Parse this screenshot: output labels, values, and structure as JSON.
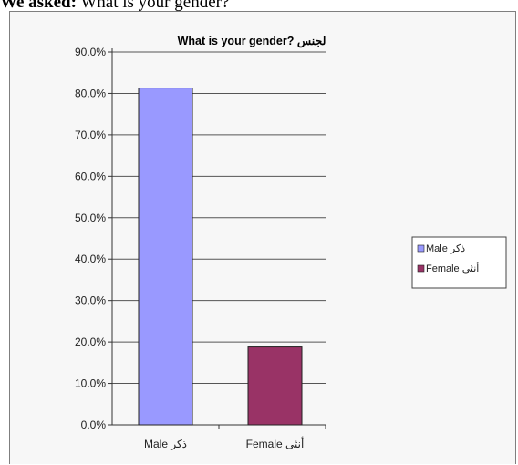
{
  "intro": {
    "label": "We asked:",
    "question": "What is your gender?"
  },
  "colors": {
    "male": "#9999ff",
    "female": "#993366",
    "plot_background": "#f7f7f7",
    "gridline": "#555555"
  },
  "chart_data": {
    "type": "bar",
    "title": "What is your gender? لجنس",
    "categories": [
      "Male ذكر",
      "Female أنثى"
    ],
    "values": [
      81.3,
      18.8
    ],
    "value_format": "percent",
    "ylim": [
      0,
      90
    ],
    "ytick_step": 10,
    "ytick_labels": [
      "0.0%",
      "10.0%",
      "20.0%",
      "30.0%",
      "40.0%",
      "50.0%",
      "60.0%",
      "70.0%",
      "80.0%",
      "90.0%"
    ],
    "xlabel": "",
    "ylabel": "",
    "grid": true,
    "legend": {
      "position": "right",
      "entries": [
        "Male ذكر",
        "Female أنثى"
      ]
    }
  }
}
